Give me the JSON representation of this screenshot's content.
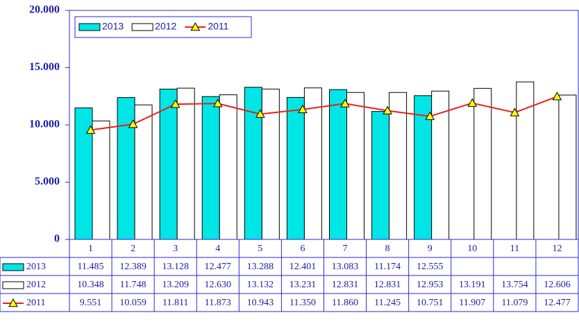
{
  "chart_data": {
    "type": "bar",
    "categories": [
      "1",
      "2",
      "3",
      "4",
      "5",
      "6",
      "7",
      "8",
      "9",
      "10",
      "11",
      "12"
    ],
    "series": [
      {
        "name": "2013",
        "type": "bar",
        "color": "#00e6e6",
        "values": [
          11485,
          12389,
          13128,
          12477,
          13288,
          12401,
          13083,
          11174,
          12555,
          null,
          null,
          null
        ],
        "value_labels": [
          "11.485",
          "12.389",
          "13.128",
          "12.477",
          "13.288",
          "12.401",
          "13.083",
          "11.174",
          "12.555",
          null,
          null,
          null
        ]
      },
      {
        "name": "2012",
        "type": "bar",
        "color": "#ffffff",
        "values": [
          10348,
          11748,
          13209,
          12630,
          13132,
          13231,
          12831,
          12831,
          12953,
          13191,
          13754,
          12606
        ],
        "value_labels": [
          "10.348",
          "11.748",
          "13.209",
          "12.630",
          "13.132",
          "13.231",
          "12.831",
          "12.831",
          "12.953",
          "13.191",
          "13.754",
          "12.606"
        ]
      },
      {
        "name": "2011",
        "type": "line",
        "color": "#e8201a",
        "marker_color": "#ffff00",
        "values": [
          9551,
          10059,
          11811,
          11873,
          10943,
          11350,
          11860,
          11245,
          10751,
          11907,
          11079,
          12477
        ],
        "value_labels": [
          "9.551",
          "10.059",
          "11.811",
          "11.873",
          "10.943",
          "11.350",
          "11.860",
          "11.245",
          "10.751",
          "11.907",
          "11.079",
          "12.477"
        ]
      }
    ],
    "ylim": [
      0,
      20000
    ],
    "yticks": [
      0,
      {
        "value": 5000,
        "label": "5.000"
      },
      {
        "value": 10000,
        "label": "10.000"
      },
      {
        "value": 15000,
        "label": "15.000"
      },
      {
        "value": 20000,
        "label": "20.000"
      }
    ],
    "grid": false,
    "legend": "top-left"
  }
}
